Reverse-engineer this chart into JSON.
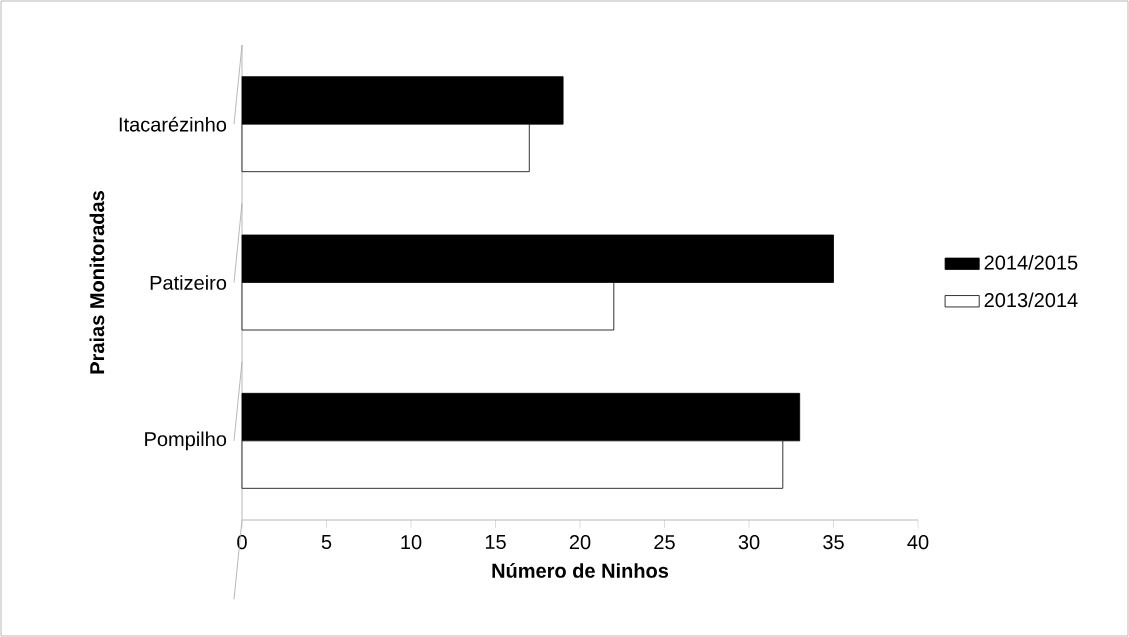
{
  "chart_data": {
    "type": "bar",
    "orientation": "horizontal",
    "xlabel": "Número de Ninhos",
    "ylabel": "Praias Monitoradas",
    "categories": [
      "Itacarézinho",
      "Patizeiro",
      "Pompilho"
    ],
    "series": [
      {
        "name": "2014/2015",
        "color": "#000000",
        "values": [
          19,
          35,
          33
        ]
      },
      {
        "name": "2013/2014",
        "color": "#ffffff",
        "values": [
          17,
          22,
          32
        ]
      }
    ],
    "xlim": [
      0,
      40
    ],
    "xticks": [
      0,
      5,
      10,
      15,
      20,
      25,
      30,
      35,
      40
    ],
    "grid": false,
    "legend": "right"
  }
}
